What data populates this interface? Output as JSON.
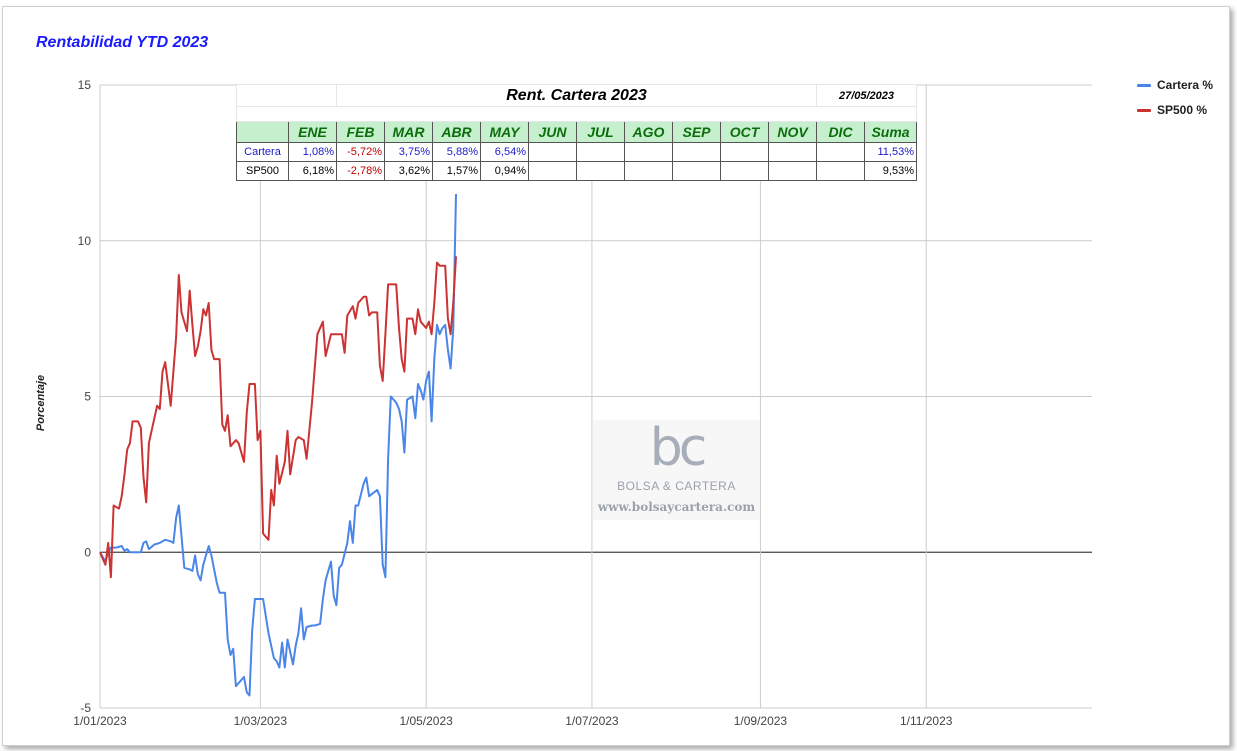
{
  "chart_data": {
    "type": "line",
    "title": "Rentabilidad YTD 2023",
    "ylabel": "Porcentaje",
    "xlabel": "",
    "ylim": [
      -5,
      15
    ],
    "yticks": [
      15,
      10,
      5,
      0,
      -5
    ],
    "xlim": [
      "2023-01-01",
      "2024-01-01"
    ],
    "xticks": [
      {
        "date": "2023-01-01",
        "label": "1/01/2023"
      },
      {
        "date": "2023-03-01",
        "label": "1/03/2023"
      },
      {
        "date": "2023-05-01",
        "label": "1/05/2023"
      },
      {
        "date": "2023-07-01",
        "label": "1/07/2023"
      },
      {
        "date": "2023-09-01",
        "label": "1/09/2023"
      },
      {
        "date": "2023-11-01",
        "label": "1/11/2023"
      }
    ],
    "grid": true,
    "legend_position": "right",
    "series": [
      {
        "name": "Cartera %",
        "color": "#4a86e8",
        "points": [
          [
            "2023-01-01",
            0
          ],
          [
            "2023-01-03",
            -0.3
          ],
          [
            "2023-01-04",
            0
          ],
          [
            "2023-01-05",
            0.15
          ],
          [
            "2023-01-07",
            0.15
          ],
          [
            "2023-01-09",
            0.2
          ],
          [
            "2023-01-10",
            0.05
          ],
          [
            "2023-01-11",
            0.1
          ],
          [
            "2023-01-12",
            0
          ],
          [
            "2023-01-14",
            0
          ],
          [
            "2023-01-16",
            0
          ],
          [
            "2023-01-17",
            0.3
          ],
          [
            "2023-01-18",
            0.35
          ],
          [
            "2023-01-19",
            0.1
          ],
          [
            "2023-01-21",
            0.25
          ],
          [
            "2023-01-23",
            0.3
          ],
          [
            "2023-01-24",
            0.35
          ],
          [
            "2023-01-25",
            0.4
          ],
          [
            "2023-01-27",
            0.35
          ],
          [
            "2023-01-28",
            0.3
          ],
          [
            "2023-01-29",
            1.1
          ],
          [
            "2023-01-30",
            1.5
          ],
          [
            "2023-02-01",
            -0.5
          ],
          [
            "2023-02-03",
            -0.55
          ],
          [
            "2023-02-04",
            -0.6
          ],
          [
            "2023-02-05",
            -0.1
          ],
          [
            "2023-02-06",
            -0.7
          ],
          [
            "2023-02-07",
            -0.9
          ],
          [
            "2023-02-08",
            -0.4
          ],
          [
            "2023-02-10",
            0.2
          ],
          [
            "2023-02-11",
            -0.1
          ],
          [
            "2023-02-13",
            -1.0
          ],
          [
            "2023-02-14",
            -1.3
          ],
          [
            "2023-02-16",
            -1.3
          ],
          [
            "2023-02-17",
            -2.8
          ],
          [
            "2023-02-18",
            -3.3
          ],
          [
            "2023-02-19",
            -3.1
          ],
          [
            "2023-02-20",
            -4.3
          ],
          [
            "2023-02-21",
            -4.2
          ],
          [
            "2023-02-23",
            -4.0
          ],
          [
            "2023-02-24",
            -4.5
          ],
          [
            "2023-02-25",
            -4.6
          ],
          [
            "2023-02-26",
            -2.5
          ],
          [
            "2023-02-27",
            -1.5
          ],
          [
            "2023-03-01",
            -1.5
          ],
          [
            "2023-03-02",
            -1.5
          ],
          [
            "2023-03-04",
            -2.6
          ],
          [
            "2023-03-06",
            -3.4
          ],
          [
            "2023-03-07",
            -3.5
          ],
          [
            "2023-03-08",
            -3.7
          ],
          [
            "2023-03-09",
            -2.9
          ],
          [
            "2023-03-10",
            -3.7
          ],
          [
            "2023-03-11",
            -2.8
          ],
          [
            "2023-03-13",
            -3.6
          ],
          [
            "2023-03-14",
            -3.0
          ],
          [
            "2023-03-15",
            -2.6
          ],
          [
            "2023-03-16",
            -1.8
          ],
          [
            "2023-03-17",
            -2.8
          ],
          [
            "2023-03-18",
            -2.4
          ],
          [
            "2023-03-20",
            -2.35
          ],
          [
            "2023-03-21",
            -2.35
          ],
          [
            "2023-03-23",
            -2.3
          ],
          [
            "2023-03-24",
            -1.5
          ],
          [
            "2023-03-25",
            -0.9
          ],
          [
            "2023-03-27",
            -0.3
          ],
          [
            "2023-03-28",
            -1.4
          ],
          [
            "2023-03-29",
            -1.7
          ],
          [
            "2023-03-30",
            -0.5
          ],
          [
            "2023-03-31",
            -0.4
          ],
          [
            "2023-04-02",
            0.3
          ],
          [
            "2023-04-03",
            1.0
          ],
          [
            "2023-04-04",
            0.3
          ],
          [
            "2023-04-05",
            1.5
          ],
          [
            "2023-04-06",
            1.5
          ],
          [
            "2023-04-08",
            2.2
          ],
          [
            "2023-04-09",
            2.4
          ],
          [
            "2023-04-10",
            1.8
          ],
          [
            "2023-04-13",
            2.0
          ],
          [
            "2023-04-14",
            1.8
          ],
          [
            "2023-04-15",
            -0.4
          ],
          [
            "2023-04-16",
            -0.8
          ],
          [
            "2023-04-17",
            3.0
          ],
          [
            "2023-04-18",
            5.0
          ],
          [
            "2023-04-20",
            4.8
          ],
          [
            "2023-04-21",
            4.6
          ],
          [
            "2023-04-22",
            4.2
          ],
          [
            "2023-04-23",
            3.2
          ],
          [
            "2023-04-24",
            4.9
          ],
          [
            "2023-04-26",
            5.0
          ],
          [
            "2023-04-27",
            4.3
          ],
          [
            "2023-04-28",
            5.4
          ],
          [
            "2023-04-29",
            5.2
          ],
          [
            "2023-04-30",
            4.9
          ],
          [
            "2023-05-01",
            5.5
          ],
          [
            "2023-05-02",
            5.8
          ],
          [
            "2023-05-03",
            4.2
          ],
          [
            "2023-05-04",
            6.2
          ],
          [
            "2023-05-05",
            7.3
          ],
          [
            "2023-05-06",
            7.0
          ],
          [
            "2023-05-07",
            7.2
          ],
          [
            "2023-05-08",
            7.3
          ],
          [
            "2023-05-09",
            6.5
          ],
          [
            "2023-05-10",
            5.9
          ],
          [
            "2023-05-11",
            7.2
          ],
          [
            "2023-05-12",
            11.5
          ]
        ]
      },
      {
        "name": "SP500 %",
        "color": "#cc3333",
        "points": [
          [
            "2023-01-01",
            0
          ],
          [
            "2023-01-03",
            -0.4
          ],
          [
            "2023-01-04",
            0.3
          ],
          [
            "2023-01-05",
            -0.8
          ],
          [
            "2023-01-06",
            1.5
          ],
          [
            "2023-01-08",
            1.4
          ],
          [
            "2023-01-09",
            1.8
          ],
          [
            "2023-01-10",
            2.5
          ],
          [
            "2023-01-11",
            3.3
          ],
          [
            "2023-01-12",
            3.5
          ],
          [
            "2023-01-13",
            4.2
          ],
          [
            "2023-01-15",
            4.2
          ],
          [
            "2023-01-16",
            4.0
          ],
          [
            "2023-01-17",
            2.4
          ],
          [
            "2023-01-18",
            1.6
          ],
          [
            "2023-01-19",
            3.5
          ],
          [
            "2023-01-20",
            3.9
          ],
          [
            "2023-01-22",
            4.7
          ],
          [
            "2023-01-23",
            4.6
          ],
          [
            "2023-01-24",
            5.8
          ],
          [
            "2023-01-25",
            6.1
          ],
          [
            "2023-01-27",
            4.7
          ],
          [
            "2023-01-29",
            6.9
          ],
          [
            "2023-01-30",
            8.9
          ],
          [
            "2023-01-31",
            7.7
          ],
          [
            "2023-02-02",
            7.1
          ],
          [
            "2023-02-03",
            8.4
          ],
          [
            "2023-02-04",
            7.3
          ],
          [
            "2023-02-05",
            6.3
          ],
          [
            "2023-02-06",
            6.6
          ],
          [
            "2023-02-07",
            7.1
          ],
          [
            "2023-02-08",
            7.8
          ],
          [
            "2023-02-09",
            7.6
          ],
          [
            "2023-02-10",
            8.0
          ],
          [
            "2023-02-11",
            6.5
          ],
          [
            "2023-02-12",
            6.2
          ],
          [
            "2023-02-14",
            6.2
          ],
          [
            "2023-02-15",
            4.1
          ],
          [
            "2023-02-16",
            3.9
          ],
          [
            "2023-02-17",
            4.4
          ],
          [
            "2023-02-18",
            3.4
          ],
          [
            "2023-02-20",
            3.6
          ],
          [
            "2023-02-21",
            3.5
          ],
          [
            "2023-02-23",
            2.9
          ],
          [
            "2023-02-24",
            4.5
          ],
          [
            "2023-02-25",
            5.4
          ],
          [
            "2023-02-27",
            5.4
          ],
          [
            "2023-02-28",
            3.6
          ],
          [
            "2023-03-01",
            3.9
          ],
          [
            "2023-03-02",
            0.6
          ],
          [
            "2023-03-04",
            0.4
          ],
          [
            "2023-03-05",
            2.0
          ],
          [
            "2023-03-06",
            1.5
          ],
          [
            "2023-03-07",
            3.1
          ],
          [
            "2023-03-08",
            2.2
          ],
          [
            "2023-03-10",
            2.9
          ],
          [
            "2023-03-11",
            3.9
          ],
          [
            "2023-03-12",
            2.5
          ],
          [
            "2023-03-14",
            3.6
          ],
          [
            "2023-03-15",
            3.7
          ],
          [
            "2023-03-17",
            3.6
          ],
          [
            "2023-03-18",
            3.0
          ],
          [
            "2023-03-20",
            4.8
          ],
          [
            "2023-03-22",
            7.0
          ],
          [
            "2023-03-24",
            7.4
          ],
          [
            "2023-03-25",
            6.3
          ],
          [
            "2023-03-27",
            7.0
          ],
          [
            "2023-03-29",
            7.0
          ],
          [
            "2023-03-31",
            7.0
          ],
          [
            "2023-04-01",
            6.4
          ],
          [
            "2023-04-02",
            7.6
          ],
          [
            "2023-04-04",
            7.9
          ],
          [
            "2023-04-05",
            7.5
          ],
          [
            "2023-04-06",
            8.0
          ],
          [
            "2023-04-08",
            8.2
          ],
          [
            "2023-04-09",
            8.2
          ],
          [
            "2023-04-10",
            7.6
          ],
          [
            "2023-04-11",
            7.7
          ],
          [
            "2023-04-13",
            7.7
          ],
          [
            "2023-04-14",
            6.0
          ],
          [
            "2023-04-15",
            5.5
          ],
          [
            "2023-04-16",
            7.0
          ],
          [
            "2023-04-17",
            8.6
          ],
          [
            "2023-04-20",
            8.6
          ],
          [
            "2023-04-21",
            7.2
          ],
          [
            "2023-04-22",
            6.2
          ],
          [
            "2023-04-23",
            5.8
          ],
          [
            "2023-04-24",
            7.5
          ],
          [
            "2023-04-26",
            7.5
          ],
          [
            "2023-04-27",
            7.0
          ],
          [
            "2023-04-28",
            7.8
          ],
          [
            "2023-04-29",
            7.4
          ],
          [
            "2023-05-01",
            7.2
          ],
          [
            "2023-05-02",
            7.4
          ],
          [
            "2023-05-03",
            7.0
          ],
          [
            "2023-05-04",
            8.0
          ],
          [
            "2023-05-05",
            9.3
          ],
          [
            "2023-05-06",
            9.2
          ],
          [
            "2023-05-08",
            9.2
          ],
          [
            "2023-05-09",
            7.5
          ],
          [
            "2023-05-10",
            7.0
          ],
          [
            "2023-05-11",
            8.0
          ],
          [
            "2023-05-12",
            9.5
          ]
        ]
      }
    ]
  },
  "table": {
    "title": "Rent. Cartera 2023",
    "date": "27/05/2023",
    "headers": [
      "ENE",
      "FEB",
      "MAR",
      "ABR",
      "MAY",
      "JUN",
      "JUL",
      "AGO",
      "SEP",
      "OCT",
      "NOV",
      "DIC",
      "Suma"
    ],
    "rows": [
      {
        "label": "Cartera",
        "values": [
          "1,08%",
          "-5,72%",
          "3,75%",
          "5,88%",
          "6,54%",
          "",
          "",
          "",
          "",
          "",
          "",
          "",
          "11,53%"
        ],
        "label_color": "#1a1acc"
      },
      {
        "label": "SP500",
        "values": [
          "6,18%",
          "-2,78%",
          "3,62%",
          "1,57%",
          "0,94%",
          "",
          "",
          "",
          "",
          "",
          "",
          "",
          "9,53%"
        ],
        "label_color": "#000000"
      }
    ]
  },
  "watermark": {
    "logo_text": "bc",
    "brand": "BOLSA & CARTERA",
    "url": "www.bolsaycartera.com"
  }
}
